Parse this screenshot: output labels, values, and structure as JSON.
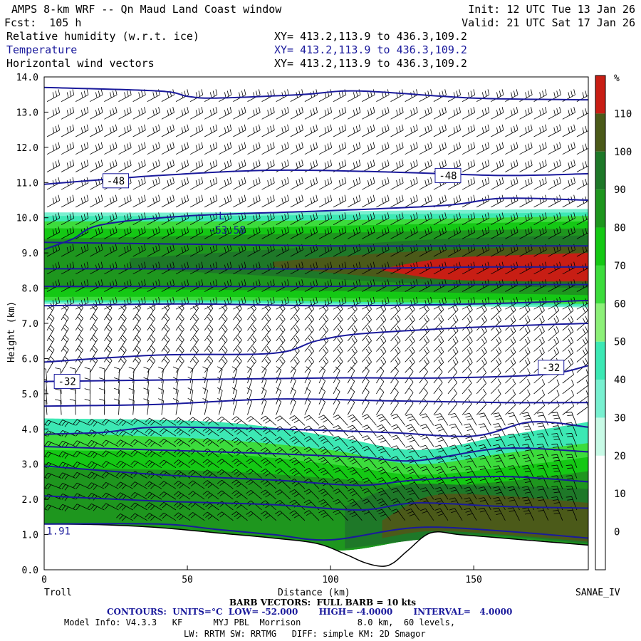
{
  "header": {
    "title": "AMPS 8-km WRF -- Qn Maud Land Coast window",
    "forecast": "Fcst:  105 h",
    "init": "Init: 12 UTC Tue 13 Jan 26",
    "valid": "Valid: 21 UTC Sat 17 Jan 26",
    "fields": [
      {
        "name": "Relative humidity (w.r.t. ice)",
        "xy": "XY= 413.2,113.9 to 436.3,109.2",
        "color": "#000000"
      },
      {
        "name": "Temperature",
        "xy": "XY= 413.2,113.9 to 436.3,109.2",
        "color": "#1a1a9c"
      },
      {
        "name": "Horizontal wind vectors",
        "xy": "XY= 413.2,113.9 to 436.3,109.2",
        "color": "#000000"
      }
    ]
  },
  "footer": {
    "left_station": "Troll",
    "right_station": "SANAE_IV",
    "barb": "BARB VECTORS:  FULL BARB = 10 kts",
    "contours": "CONTOURS:  UNITS=°C  LOW= -52.000       HIGH= -4.0000       INTERVAL=   4.0000",
    "model_info": "Model Info: V4.3.3   KF      MYJ PBL  Morrison           8.0 km,  60 levels,",
    "model_info2": "LW: RRTM SW: RRTMG   DIFF: simple KM: 2D Smagor"
  },
  "chart_data": {
    "type": "heatmap",
    "title": "Cross-section: Relative humidity (w.r.t. ice), Temperature, Horizontal wind vectors",
    "xlabel": "Distance (km)",
    "ylabel": "Height (km)",
    "xlim": [
      0,
      190
    ],
    "ylim": [
      0,
      14
    ],
    "x_ticks": [
      0,
      50,
      100,
      150
    ],
    "y_ticks": [
      0.0,
      1.0,
      2.0,
      3.0,
      4.0,
      5.0,
      6.0,
      7.0,
      8.0,
      9.0,
      10.0,
      11.0,
      12.0,
      13.0,
      14.0
    ],
    "colorbar": {
      "unit": "%",
      "ticks": [
        0,
        10,
        20,
        30,
        40,
        50,
        60,
        70,
        80,
        90,
        100,
        110
      ],
      "colors": [
        "#ffffff",
        "#ffffff",
        "#ffffff",
        "#c8fae6",
        "#78f0d0",
        "#3ce8b4",
        "#8cf078",
        "#3cdc3c",
        "#14c814",
        "#1e961e",
        "#1e7828",
        "#4b5a19",
        "#c81e14"
      ]
    },
    "terrain": {
      "x": [
        0,
        20,
        40,
        60,
        80,
        95,
        105,
        112,
        118,
        122,
        127,
        135,
        145,
        160,
        175,
        190
      ],
      "height": [
        1.3,
        1.28,
        1.2,
        1.05,
        0.9,
        0.75,
        0.45,
        0.2,
        0.1,
        0.2,
        0.55,
        1.05,
        1.0,
        0.9,
        0.8,
        0.7
      ]
    },
    "rh_layers": [
      {
        "rh": 30,
        "x": [
          0,
          60,
          120,
          190
        ],
        "bottom": [
          7.55,
          7.55,
          7.5,
          7.45
        ],
        "top": [
          10.15,
          10.15,
          10.2,
          10.25
        ]
      },
      {
        "rh": 40,
        "x": [
          0,
          60,
          120,
          190
        ],
        "bottom": [
          7.6,
          7.6,
          7.55,
          7.5
        ],
        "top": [
          10.05,
          10.05,
          10.1,
          10.15
        ]
      },
      {
        "rh": 60,
        "x": [
          0,
          60,
          120,
          190
        ],
        "bottom": [
          7.65,
          7.65,
          7.6,
          7.55
        ],
        "top": [
          9.9,
          9.9,
          9.95,
          10.05
        ]
      },
      {
        "rh": 70,
        "x": [
          0,
          60,
          120,
          190
        ],
        "bottom": [
          7.75,
          7.75,
          7.7,
          7.65
        ],
        "top": [
          9.7,
          9.7,
          9.8,
          9.9
        ]
      },
      {
        "rh": 80,
        "x": [
          0,
          60,
          120,
          190
        ],
        "bottom": [
          8.0,
          7.95,
          7.9,
          7.8
        ],
        "top": [
          9.4,
          9.5,
          9.6,
          9.7
        ]
      },
      {
        "rh": 90,
        "x": [
          30,
          90,
          140,
          190
        ],
        "bottom": [
          8.55,
          8.3,
          8.1,
          8.0
        ],
        "top": [
          8.85,
          9.15,
          9.4,
          9.5
        ]
      },
      {
        "rh": 100,
        "x": [
          80,
          120,
          160,
          190
        ],
        "bottom": [
          8.6,
          8.3,
          8.2,
          8.15
        ],
        "top": [
          8.75,
          9.0,
          9.15,
          9.2
        ]
      },
      {
        "rh": 110,
        "x": [
          118,
          140,
          170,
          190
        ],
        "bottom": [
          8.5,
          8.25,
          8.2,
          8.2
        ],
        "top": [
          8.55,
          8.85,
          8.95,
          9.0
        ]
      },
      {
        "rh": 40,
        "x": [
          0,
          60,
          100,
          130,
          160,
          190
        ],
        "bottom": [
          1.3,
          1.05,
          0.55,
          0.85,
          0.9,
          0.7
        ],
        "top": [
          4.3,
          4.2,
          3.8,
          3.4,
          3.8,
          4.2
        ]
      },
      {
        "rh": 60,
        "x": [
          0,
          60,
          100,
          130,
          160,
          190
        ],
        "bottom": [
          1.3,
          1.05,
          0.55,
          0.85,
          0.9,
          0.7
        ],
        "top": [
          3.9,
          3.7,
          3.4,
          3.0,
          3.3,
          3.6
        ]
      },
      {
        "rh": 70,
        "x": [
          0,
          60,
          100,
          130,
          160,
          190
        ],
        "bottom": [
          1.3,
          1.05,
          0.55,
          0.85,
          0.9,
          0.7
        ],
        "top": [
          3.4,
          3.3,
          3.0,
          2.7,
          2.9,
          3.2
        ]
      },
      {
        "rh": 80,
        "x": [
          0,
          60,
          100,
          130,
          160,
          190
        ],
        "bottom": [
          1.3,
          1.05,
          0.55,
          0.85,
          0.9,
          0.7
        ],
        "top": [
          2.9,
          2.8,
          2.6,
          2.4,
          2.5,
          2.8
        ]
      },
      {
        "rh": 90,
        "x": [
          105,
          125,
          150,
          190
        ],
        "bottom": [
          0.6,
          0.8,
          1.0,
          0.75
        ],
        "top": [
          1.8,
          2.4,
          2.4,
          2.3
        ]
      },
      {
        "rh": 100,
        "x": [
          118,
          135,
          160,
          190
        ],
        "bottom": [
          0.9,
          1.1,
          1.0,
          0.8
        ],
        "top": [
          1.4,
          2.1,
          2.1,
          1.9
        ]
      }
    ],
    "temperature_contours": [
      {
        "x": [
          0,
          40,
          60,
          80,
          100,
          130,
          160,
          190
        ],
        "height": [
          1.3,
          1.3,
          1.15,
          1.0,
          0.85,
          1.2,
          1.1,
          0.9
        ]
      },
      {
        "x": [
          0,
          40,
          80,
          110,
          130,
          160,
          190
        ],
        "height": [
          2.1,
          1.95,
          1.85,
          1.7,
          1.9,
          1.8,
          1.75
        ]
      },
      {
        "x": [
          0,
          40,
          80,
          110,
          130,
          160,
          190
        ],
        "height": [
          2.95,
          2.7,
          2.55,
          2.4,
          2.55,
          2.65,
          2.5
        ]
      },
      {
        "x": [
          0,
          40,
          80,
          110,
          130,
          160,
          190
        ],
        "height": [
          3.5,
          3.4,
          3.3,
          3.2,
          3.1,
          3.45,
          3.35
        ]
      },
      {
        "x": [
          0,
          20,
          40,
          80,
          120,
          150,
          170,
          190
        ],
        "height": [
          3.85,
          3.9,
          4.05,
          4.0,
          3.9,
          3.8,
          4.2,
          4.05
        ]
      },
      {
        "x": [
          0,
          40,
          80,
          120,
          160,
          190
        ],
        "height": [
          4.65,
          4.7,
          4.85,
          4.8,
          4.75,
          4.75
        ]
      },
      {
        "x": [
          0,
          50,
          100,
          140,
          175,
          190
        ],
        "height": [
          5.35,
          5.4,
          5.45,
          5.45,
          5.55,
          5.8
        ]
      },
      {
        "x": [
          0,
          40,
          80,
          95,
          110,
          140,
          170,
          190
        ],
        "height": [
          5.9,
          6.1,
          6.15,
          6.5,
          6.7,
          6.85,
          6.95,
          7.0
        ]
      },
      {
        "x": [
          0,
          50,
          100,
          150,
          190
        ],
        "height": [
          7.5,
          7.55,
          7.5,
          7.55,
          7.65
        ]
      },
      {
        "x": [
          0,
          50,
          100,
          150,
          190
        ],
        "height": [
          8.05,
          8.05,
          8.05,
          8.1,
          8.1
        ]
      },
      {
        "x": [
          0,
          50,
          100,
          150,
          190
        ],
        "height": [
          8.55,
          8.55,
          8.55,
          8.6,
          8.6
        ]
      },
      {
        "x": [
          0,
          50,
          100,
          150,
          190
        ],
        "height": [
          9.3,
          9.25,
          9.2,
          9.2,
          9.2
        ]
      },
      {
        "x": [
          0,
          10,
          20,
          50,
          100,
          140,
          160,
          190
        ],
        "height": [
          9.1,
          9.4,
          9.8,
          10.05,
          10.2,
          10.35,
          10.55,
          10.5
        ]
      },
      {
        "x": [
          0,
          40,
          80,
          120,
          160,
          190
        ],
        "height": [
          10.95,
          11.2,
          11.35,
          11.3,
          11.2,
          11.25
        ]
      },
      {
        "x": [
          0,
          40,
          50,
          60,
          90,
          110,
          150,
          190
        ],
        "height": [
          13.7,
          13.6,
          13.45,
          13.4,
          13.5,
          13.6,
          13.4,
          13.35
        ]
      }
    ],
    "contour_labels": [
      {
        "text": "-48",
        "x": 25,
        "height": 11.05,
        "boxed": true
      },
      {
        "text": "-48",
        "x": 141,
        "height": 11.2,
        "boxed": true
      },
      {
        "text": "-32",
        "x": 8,
        "height": 5.35,
        "boxed": true
      },
      {
        "text": "-32",
        "x": 177,
        "height": 5.75,
        "boxed": true
      },
      {
        "text": "L",
        "x": 62,
        "height": 10.05,
        "boxed": false
      },
      {
        "text": "-53.58",
        "x": 64,
        "height": 9.65,
        "boxed": false
      },
      {
        "text": "1.91",
        "x": 5,
        "height": 1.1,
        "boxed": false
      }
    ],
    "wind": {
      "columns_step_km": 5,
      "levels": [
        1.4,
        1.7,
        2.0,
        2.3,
        2.6,
        2.9,
        3.2,
        3.5,
        3.8,
        4.1,
        4.4,
        4.7,
        5.0,
        5.3,
        5.6,
        5.9,
        6.2,
        6.5,
        6.8,
        7.1,
        7.4,
        7.9,
        8.4,
        8.9,
        9.4,
        9.8,
        10.3,
        10.8,
        11.3,
        11.8,
        12.3,
        12.8,
        13.3
      ],
      "description": "Barbs mostly from the west-southwest aloft (long flags), turning to northerly/easterly in lowest layers"
    }
  }
}
